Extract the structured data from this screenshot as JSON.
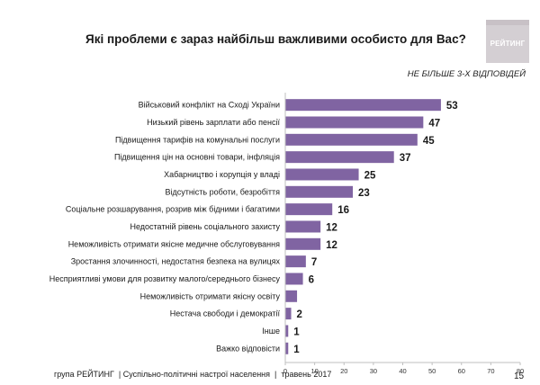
{
  "header": {
    "title": "Які проблеми є зараз найбільш важливими особисто для Вас?",
    "subtitle": "НЕ БІЛЬШЕ 3-Х ВІДПОВІДЕЙ",
    "logo_text": "РЕЙТИНГ"
  },
  "footer": {
    "text": "група РЕЙТИНГ  | Суспільно-політичні настрої населення  |  травень 2017",
    "page_number": "15"
  },
  "colors": {
    "bar": "#8064a2",
    "axis": "#bfbfbf"
  },
  "chart_data": {
    "type": "bar",
    "orientation": "horizontal",
    "title": "Які проблеми є зараз найбільш важливими особисто для Вас?",
    "categories": [
      "Військовий конфлікт на Сході України",
      "Низький рівень зарплати або пенсії",
      "Підвищення тарифів на комунальні послуги",
      "Підвищення цін на основні товари, інфляція",
      "Хабарництво і корупція у владі",
      "Відсутність роботи, безробіття",
      "Соціальне розшарування, розрив між бідними і багатими",
      "Недостатній рівень соціального захисту",
      "Неможливість отримати якісне медичне обслуговування",
      "Зростання злочинності, недостатня безпека на вулицях",
      "Несприятливі умови для розвитку малого/середнього бізнесу",
      "Неможливість отримати якісну освіту",
      "Нестача свободи і демократії",
      "Інше",
      "Важко відповісти"
    ],
    "values": [
      53,
      47,
      45,
      37,
      25,
      23,
      16,
      12,
      12,
      7,
      6,
      4,
      2,
      1,
      1
    ],
    "value_labels": [
      "53",
      "47",
      "45",
      "37",
      "25",
      "23",
      "16",
      "12",
      "12",
      "7",
      "6",
      "",
      "2",
      "1",
      "1"
    ],
    "xlim": [
      0,
      80
    ],
    "xticks": [
      0,
      10,
      20,
      30,
      40,
      50,
      60,
      70,
      80
    ],
    "grid": false
  }
}
